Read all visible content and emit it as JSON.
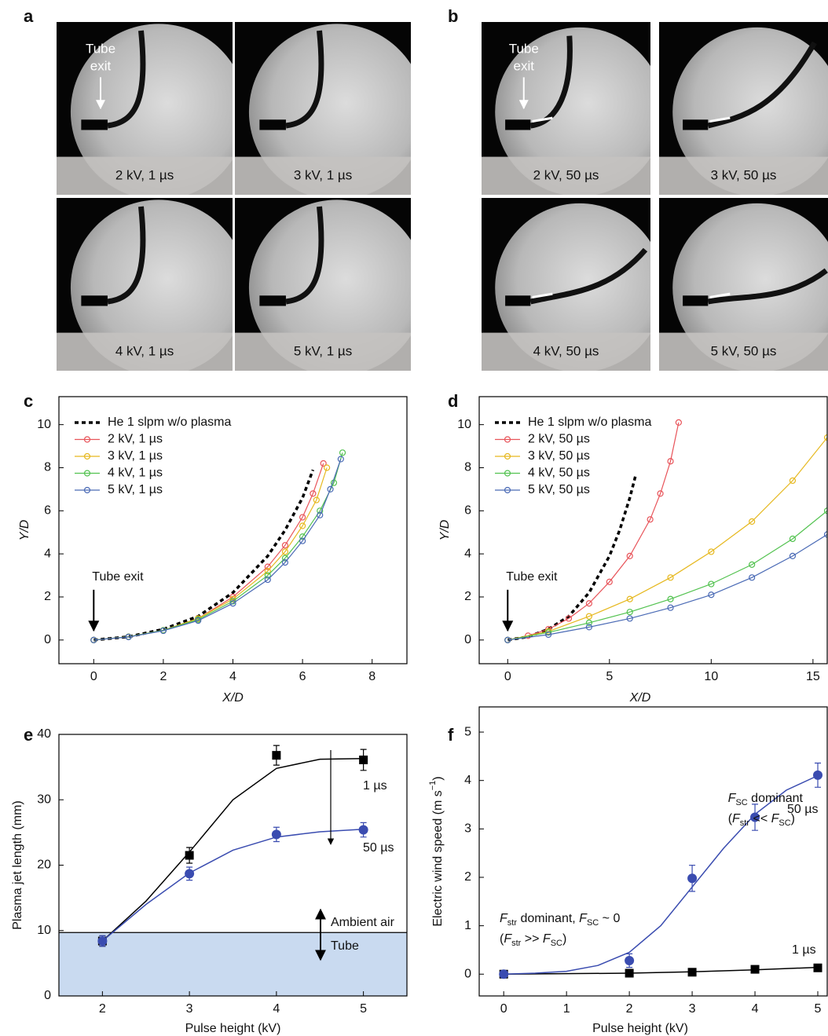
{
  "image_panels": [
    {
      "letter": "a",
      "tube_exit": [
        "Tube",
        "exit"
      ],
      "images": [
        "2 kV, 1 µs",
        "3 kV, 1 µs",
        "4 kV, 1 µs",
        "5 kV, 1 µs"
      ]
    },
    {
      "letter": "b",
      "tube_exit": [
        "Tube",
        "exit"
      ],
      "images": [
        "2 kV, 50 µs",
        "3 kV, 50 µs",
        "4 kV, 50 µs",
        "5 kV, 50 µs"
      ]
    }
  ],
  "chart_data": [
    {
      "type": "line",
      "letter": "c",
      "x_label": "X/D",
      "y_label": "Y/D",
      "annotation": "Tube exit",
      "xlim": [
        -1,
        9
      ],
      "ylim": [
        -1.1,
        11.3
      ],
      "xticks": [
        0,
        2,
        4,
        6,
        8
      ],
      "yticks": [
        0,
        2,
        4,
        6,
        8,
        10
      ],
      "series": [
        {
          "name": "He 1 slpm w/o plasma",
          "color": "#000000",
          "line_style": "dashed",
          "x": [
            0,
            1,
            2,
            3,
            4,
            5,
            5.5,
            6,
            6.3
          ],
          "values": [
            0,
            0.15,
            0.5,
            1.1,
            2.2,
            3.9,
            5.1,
            6.6,
            7.9
          ]
        },
        {
          "name": "2 kV, 1 µs",
          "color": "#e8545a",
          "marker": "open-circle",
          "x": [
            0,
            1,
            2,
            3,
            4,
            5,
            5.5,
            6,
            6.3,
            6.6
          ],
          "values": [
            0,
            0.15,
            0.45,
            1.0,
            2.0,
            3.4,
            4.4,
            5.7,
            6.8,
            8.2
          ]
        },
        {
          "name": "3 kV, 1 µs",
          "color": "#e6b81e",
          "marker": "open-circle",
          "x": [
            0,
            1,
            2,
            3,
            4,
            5,
            5.5,
            6,
            6.4,
            6.7
          ],
          "values": [
            0,
            0.15,
            0.45,
            1.0,
            1.9,
            3.2,
            4.1,
            5.3,
            6.5,
            8.0
          ]
        },
        {
          "name": "4 kV, 1 µs",
          "color": "#52c24f",
          "marker": "open-circle",
          "x": [
            0,
            1,
            2,
            3,
            4,
            5,
            5.5,
            6,
            6.5,
            6.9,
            7.15
          ],
          "values": [
            0,
            0.15,
            0.45,
            0.95,
            1.8,
            3.0,
            3.8,
            4.8,
            6.0,
            7.3,
            8.7
          ]
        },
        {
          "name": "5 kV, 1 µs",
          "color": "#4a6ab5",
          "marker": "open-circle",
          "x": [
            0,
            1,
            2,
            3,
            4,
            5,
            5.5,
            6,
            6.5,
            6.8,
            7.1
          ],
          "values": [
            0,
            0.14,
            0.43,
            0.9,
            1.7,
            2.8,
            3.6,
            4.6,
            5.8,
            7.0,
            8.4
          ]
        }
      ]
    },
    {
      "type": "line",
      "letter": "d",
      "x_label": "X/D",
      "y_label": "Y/D",
      "annotation": "Tube exit",
      "xlim": [
        -1.4,
        15.7
      ],
      "ylim": [
        -1.1,
        11.3
      ],
      "xticks": [
        0,
        5,
        10,
        15
      ],
      "yticks": [
        0,
        2,
        4,
        6,
        8,
        10
      ],
      "series": [
        {
          "name": "He 1 slpm w/o plasma",
          "color": "#000000",
          "line_style": "dashed",
          "x": [
            0,
            1,
            2,
            3,
            4,
            5,
            5.5,
            6,
            6.3
          ],
          "values": [
            0,
            0.15,
            0.5,
            1.1,
            2.2,
            3.9,
            5.1,
            6.6,
            7.7
          ]
        },
        {
          "name": "2 kV, 50 µs",
          "color": "#e8545a",
          "marker": "open-circle",
          "x": [
            0,
            1,
            2,
            3,
            4,
            5,
            6,
            7,
            7.5,
            8,
            8.4
          ],
          "values": [
            0,
            0.2,
            0.5,
            1.0,
            1.7,
            2.7,
            3.9,
            5.6,
            6.8,
            8.3,
            10.1
          ]
        },
        {
          "name": "3 kV, 50 µs",
          "color": "#e6b81e",
          "marker": "open-circle",
          "x": [
            0,
            2,
            4,
            6,
            8,
            10,
            12,
            14,
            15.7
          ],
          "values": [
            0,
            0.4,
            1.1,
            1.9,
            2.9,
            4.1,
            5.5,
            7.4,
            9.4
          ]
        },
        {
          "name": "4 kV, 50 µs",
          "color": "#52c24f",
          "marker": "open-circle",
          "x": [
            0,
            2,
            4,
            6,
            8,
            10,
            12,
            14,
            15.7
          ],
          "values": [
            0,
            0.35,
            0.8,
            1.3,
            1.9,
            2.6,
            3.5,
            4.7,
            6.0
          ]
        },
        {
          "name": "5 kV, 50 µs",
          "color": "#4a6ab5",
          "marker": "open-circle",
          "x": [
            0,
            2,
            4,
            6,
            8,
            10,
            12,
            14,
            15.7
          ],
          "values": [
            0,
            0.25,
            0.6,
            1.0,
            1.5,
            2.1,
            2.9,
            3.9,
            4.9
          ]
        }
      ]
    },
    {
      "type": "scatter",
      "letter": "e",
      "x_label": "Pulse height (kV)",
      "y_label": "Plasma jet length (mm)",
      "xlim": [
        1.5,
        5.5
      ],
      "ylim": [
        0,
        40
      ],
      "xticks": [
        2,
        3,
        4,
        5
      ],
      "yticks": [
        0,
        10,
        20,
        30,
        40
      ],
      "shade_below": 9.7,
      "shade_color": "#c9daf0",
      "region_labels": [
        "Ambient air",
        "Tube"
      ],
      "series": [
        {
          "name": "1 µs",
          "color": "#000000",
          "marker": "square",
          "x": [
            2,
            3,
            4,
            5
          ],
          "values": [
            8.4,
            21.5,
            36.8,
            36.1
          ],
          "errors": [
            0.8,
            1.2,
            1.5,
            1.6
          ],
          "fit_x": [
            2,
            2.5,
            3,
            3.5,
            4,
            4.5,
            5
          ],
          "fit_values": [
            8.4,
            14.5,
            22,
            30,
            34.8,
            36.2,
            36.3
          ]
        },
        {
          "name": "50 µs",
          "color": "#3a4cb0",
          "marker": "circle",
          "x": [
            2,
            3,
            4,
            5
          ],
          "values": [
            8.4,
            18.7,
            24.7,
            25.4
          ],
          "errors": [
            0.8,
            1.0,
            1.1,
            1.1
          ],
          "fit_x": [
            2,
            2.5,
            3,
            3.5,
            4,
            4.5,
            5
          ],
          "fit_values": [
            8.4,
            14,
            18.8,
            22.3,
            24.3,
            25.1,
            25.5
          ]
        }
      ]
    },
    {
      "type": "scatter",
      "letter": "f",
      "x_label": "Pulse height (kV)",
      "y_label": [
        {
          "text": "Electric wind speed (m s"
        },
        {
          "text": "−1",
          "sup": true
        },
        {
          "text": ")"
        }
      ],
      "xlim": [
        -0.39,
        5.15
      ],
      "ylim": [
        -0.45,
        5.52
      ],
      "xticks": [
        0,
        1,
        2,
        3,
        4,
        5
      ],
      "yticks": [
        0,
        1,
        2,
        3,
        4,
        5
      ],
      "notes": [
        [
          {
            "text": "F",
            "italic": true
          },
          {
            "text": "str",
            "sub": true
          },
          {
            "text": " dominant, "
          },
          {
            "text": "F",
            "italic": true
          },
          {
            "text": "SC",
            "sub": true
          },
          {
            "text": " ~ 0"
          }
        ],
        [
          {
            "text": "("
          },
          {
            "text": "F",
            "italic": true
          },
          {
            "text": "str",
            "sub": true
          },
          {
            "text": " >> "
          },
          {
            "text": "F",
            "italic": true
          },
          {
            "text": "SC",
            "sub": true
          },
          {
            "text": ")"
          }
        ],
        [
          {
            "text": "F",
            "italic": true
          },
          {
            "text": "SC",
            "sub": true
          },
          {
            "text": " dominant"
          }
        ],
        [
          {
            "text": "("
          },
          {
            "text": "F",
            "italic": true
          },
          {
            "text": "str",
            "sub": true
          },
          {
            "text": " << "
          },
          {
            "text": "F",
            "italic": true
          },
          {
            "text": "SC",
            "sub": true
          },
          {
            "text": ")"
          }
        ]
      ],
      "series": [
        {
          "name": "1 µs",
          "color": "#000000",
          "marker": "square",
          "x": [
            0,
            2,
            3,
            4,
            5
          ],
          "values": [
            0,
            0.02,
            0.04,
            0.1,
            0.13
          ],
          "errors": [
            0.02,
            0.02,
            0.02,
            0.03,
            0.03
          ],
          "fit_x": [
            0,
            2,
            3,
            4,
            5
          ],
          "fit_values": [
            0,
            0.02,
            0.05,
            0.09,
            0.14
          ]
        },
        {
          "name": "50 µs",
          "color": "#3a4cb0",
          "marker": "circle",
          "x": [
            0,
            2,
            3,
            4,
            5
          ],
          "values": [
            0,
            0.28,
            1.98,
            3.24,
            4.11
          ],
          "errors": [
            0.05,
            0.14,
            0.27,
            0.27,
            0.25
          ],
          "fit_x": [
            0,
            0.5,
            1,
            1.5,
            2,
            2.5,
            3,
            3.5,
            4,
            4.5,
            5
          ],
          "fit_values": [
            0,
            0.02,
            0.06,
            0.18,
            0.45,
            1.0,
            1.8,
            2.6,
            3.3,
            3.8,
            4.1
          ]
        }
      ]
    }
  ]
}
